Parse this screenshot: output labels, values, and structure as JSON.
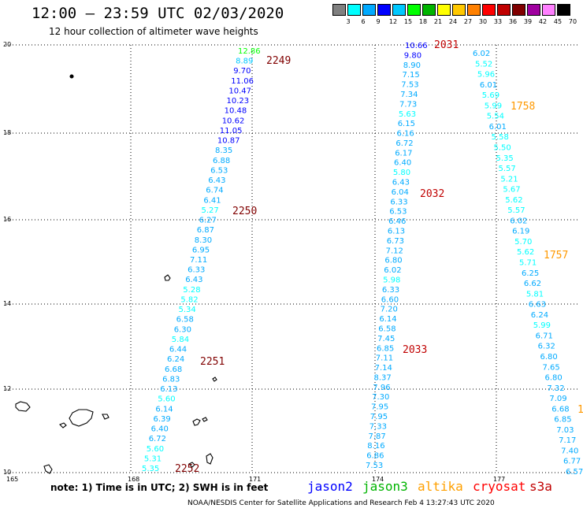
{
  "title": "12:00 – 23:59 UTC 02/03/2020",
  "subtitle": "12 hour collection of altimeter wave heights",
  "legend": {
    "colors": [
      "#808080",
      "#00ffff",
      "#00aaff",
      "#0000ff",
      "#00c8ff",
      "#00ff00",
      "#00b400",
      "#ffff00",
      "#ffc800",
      "#ff8000",
      "#ff0000",
      "#c00000",
      "#800000",
      "#a000a0",
      "#ff80ff",
      "#000000"
    ],
    "labels": [
      "3",
      "6",
      "9",
      "12",
      "15",
      "18",
      "21",
      "24",
      "27",
      "30",
      "33",
      "36",
      "39",
      "42",
      "45",
      "70",
      "(ft)"
    ]
  },
  "axes": {
    "x_labels": [
      "165",
      "168",
      "171",
      "174",
      "177"
    ],
    "y_labels": [
      "20",
      "18",
      "16",
      "14",
      "12",
      "10"
    ]
  },
  "tracks": [
    {
      "values": [
        "12.86",
        "8.89",
        "9.70",
        "11.06",
        "10.47",
        "10.23",
        "10.48",
        "10.62",
        "11.05",
        "10.87",
        "8.35",
        "6.88",
        "6.53",
        "6.43",
        "6.74",
        "6.41",
        "5.27",
        "6.27",
        "6.87",
        "8.30",
        "6.95",
        "7.11",
        "6.33",
        "6.43",
        "5.28",
        "5.82",
        "5.34",
        "6.58",
        "6.30",
        "5.84",
        "6.44",
        "6.24",
        "6.68",
        "6.83",
        "6.13",
        "5.60",
        "6.14",
        "6.39",
        "6.40",
        "6.72",
        "5.60",
        "5.31",
        "5.35"
      ],
      "colors": [
        "#00ff00",
        "#00c8ff",
        "#0000ff",
        "#0000ff",
        "#0000ff",
        "#0000ff",
        "#0000ff",
        "#0000ff",
        "#0000ff",
        "#0000ff",
        "#00aaff",
        "#00aaff",
        "#00aaff",
        "#00aaff",
        "#00aaff",
        "#00aaff",
        "#00ffff",
        "#00aaff",
        "#00aaff",
        "#00aaff",
        "#00aaff",
        "#00aaff",
        "#00aaff",
        "#00aaff",
        "#00ffff",
        "#00ffff",
        "#00ffff",
        "#00aaff",
        "#00aaff",
        "#00ffff",
        "#00aaff",
        "#00aaff",
        "#00aaff",
        "#00aaff",
        "#00aaff",
        "#00ffff",
        "#00aaff",
        "#00aaff",
        "#00aaff",
        "#00aaff",
        "#00ffff",
        "#00ffff",
        "#00ffff"
      ]
    },
    {
      "values": [
        "10.66",
        "9.80",
        "8.90",
        "7.15",
        "7.53",
        "7.34",
        "7.73",
        "5.63",
        "6.15",
        "6.16",
        "6.72",
        "6.17",
        "6.40",
        "5.80",
        "6.43",
        "6.04",
        "6.33",
        "6.53",
        "6.46",
        "6.13",
        "6.73",
        "7.12",
        "6.80",
        "6.02",
        "5.98",
        "6.33",
        "6.60",
        "7.20",
        "6.14",
        "6.58",
        "7.45",
        "6.85",
        "7.11",
        "7.14",
        "8.37",
        "7.96",
        "7.30",
        "7.95",
        "7.95",
        "7.33",
        "7.87",
        "8.16",
        "6.86",
        "7.53"
      ],
      "colors": [
        "#0000ff",
        "#0000ff",
        "#00aaff",
        "#00aaff",
        "#00aaff",
        "#00aaff",
        "#00aaff",
        "#00ffff",
        "#00aaff",
        "#00aaff",
        "#00aaff",
        "#00aaff",
        "#00aaff",
        "#00ffff",
        "#00aaff",
        "#00aaff",
        "#00aaff",
        "#00aaff",
        "#00aaff",
        "#00aaff",
        "#00aaff",
        "#00aaff",
        "#00aaff",
        "#00aaff",
        "#00ffff",
        "#00aaff",
        "#00aaff",
        "#00aaff",
        "#00aaff",
        "#00aaff",
        "#00aaff",
        "#00aaff",
        "#00aaff",
        "#00aaff",
        "#00aaff",
        "#00aaff",
        "#00aaff",
        "#00aaff",
        "#00aaff",
        "#00aaff",
        "#00aaff",
        "#00aaff",
        "#00aaff",
        "#00aaff"
      ]
    },
    {
      "values": [
        "6.02",
        "5.52",
        "5.96",
        "6.01",
        "5.69",
        "5.99",
        "5.54",
        "6.01",
        "5.58",
        "5.50",
        "5.35",
        "5.57",
        "5.21",
        "5.67",
        "5.62",
        "5.57",
        "6.02",
        "6.19",
        "5.70",
        "5.62",
        "5.71",
        "6.25",
        "6.62",
        "5.81",
        "6.63",
        "6.24",
        "5.99",
        "6.71",
        "6.32",
        "6.80",
        "7.65",
        "6.80",
        "7.32",
        "7.09",
        "6.68",
        "6.85",
        "7.03",
        "7.17",
        "7.40",
        "6.77",
        "6.57"
      ],
      "colors": [
        "#00aaff",
        "#00ffff",
        "#00ffff",
        "#00aaff",
        "#00ffff",
        "#00ffff",
        "#00ffff",
        "#00aaff",
        "#00ffff",
        "#00ffff",
        "#00ffff",
        "#00ffff",
        "#00ffff",
        "#00ffff",
        "#00ffff",
        "#00ffff",
        "#00aaff",
        "#00aaff",
        "#00ffff",
        "#00ffff",
        "#00ffff",
        "#00aaff",
        "#00aaff",
        "#00ffff",
        "#00aaff",
        "#00aaff",
        "#00ffff",
        "#00aaff",
        "#00aaff",
        "#00aaff",
        "#00aaff",
        "#00aaff",
        "#00aaff",
        "#00aaff",
        "#00aaff",
        "#00aaff",
        "#00aaff",
        "#00aaff",
        "#00aaff",
        "#00aaff",
        "#00aaff"
      ]
    }
  ],
  "time_labels": [
    {
      "text": "2249",
      "color": "#800000"
    },
    {
      "text": "2250",
      "color": "#800000"
    },
    {
      "text": "2251",
      "color": "#800000"
    },
    {
      "text": "2252",
      "color": "#800000"
    },
    {
      "text": "2031",
      "color": "#c00000"
    },
    {
      "text": "2032",
      "color": "#c00000"
    },
    {
      "text": "2033",
      "color": "#c00000"
    },
    {
      "text": "1758",
      "color": "#ff9900"
    },
    {
      "text": "1757",
      "color": "#ff9900"
    },
    {
      "text": "1",
      "color": "#ff9900"
    }
  ],
  "note": "note:  1) Time is in UTC;  2) SWH is in feet",
  "satellites": [
    {
      "name": "jason2",
      "color": "#0000ff"
    },
    {
      "name": "jason3",
      "color": "#00b400"
    },
    {
      "name": "altika",
      "color": "#ffa000"
    },
    {
      "name": "cryosat",
      "color": "#ff0000"
    },
    {
      "name": "s3a",
      "color": "#c00000"
    }
  ],
  "credit": "NOAA/NESDIS Center for Satellite Applications and Research   Feb  4 13:27:43 UTC 2020"
}
